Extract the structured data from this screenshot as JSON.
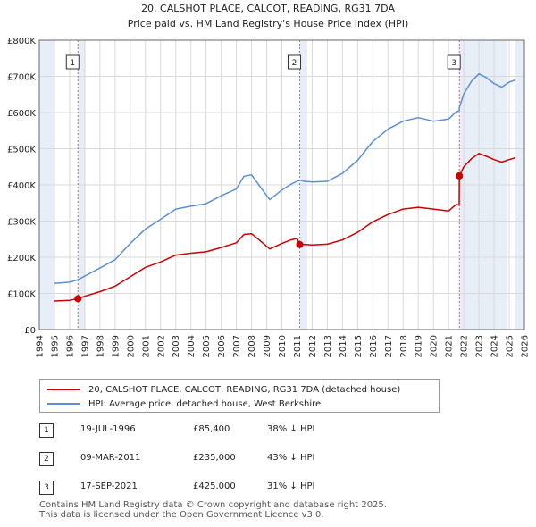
{
  "chart_data": {
    "type": "line",
    "title": "20, CALSHOT PLACE, CALCOT, READING, RG31 7DA",
    "subtitle": "Price paid vs. HM Land Registry's House Price Index (HPI)",
    "xlim": [
      1994,
      2026
    ],
    "ylim": [
      0,
      800000
    ],
    "y_ticks": [
      0,
      100000,
      200000,
      300000,
      400000,
      500000,
      600000,
      700000,
      800000
    ],
    "y_tick_labels": [
      "£0",
      "£100K",
      "£200K",
      "£300K",
      "£400K",
      "£500K",
      "£600K",
      "£700K",
      "£800K"
    ],
    "x_ticks": [
      1994,
      1995,
      1996,
      1997,
      1998,
      1999,
      2000,
      2001,
      2002,
      2003,
      2004,
      2005,
      2006,
      2007,
      2008,
      2009,
      2010,
      2011,
      2012,
      2013,
      2014,
      2015,
      2016,
      2017,
      2018,
      2019,
      2020,
      2021,
      2022,
      2023,
      2024,
      2025,
      2026
    ],
    "data_range": [
      1995.0,
      2025.4
    ],
    "shaded_regions": [
      [
        1994,
        1995.0
      ],
      [
        1996.55,
        1997.05
      ],
      [
        2011.18,
        2011.68
      ],
      [
        2021.71,
        2024.9
      ],
      [
        2025.4,
        2026
      ]
    ],
    "series": [
      {
        "name": "20, CALSHOT PLACE, CALCOT, READING, RG31 7DA (detached house)",
        "color": "#cc0000",
        "x": [
          1995.0,
          1996.0,
          1996.55,
          1997.0,
          1998.0,
          1999.0,
          2000.0,
          2001.0,
          2002.0,
          2003.0,
          2004.0,
          2005.0,
          2006.0,
          2007.0,
          2007.5,
          2008.0,
          2008.5,
          2009.2,
          2010.0,
          2010.6,
          2011.0,
          2011.18,
          2011.5,
          2012.0,
          2013.0,
          2014.0,
          2015.0,
          2016.0,
          2017.0,
          2018.0,
          2019.0,
          2020.0,
          2021.0,
          2021.5,
          2021.7,
          2021.71,
          2022.0,
          2022.5,
          2023.0,
          2023.5,
          2024.0,
          2024.5,
          2025.0,
          2025.4
        ],
        "values": [
          79000,
          81000,
          85400,
          92000,
          105000,
          120000,
          146000,
          172000,
          187000,
          206000,
          211000,
          215000,
          227000,
          240000,
          263000,
          265000,
          248000,
          223000,
          238000,
          248000,
          252000,
          235000,
          235000,
          234000,
          236000,
          248000,
          269000,
          298000,
          318000,
          333000,
          338000,
          333000,
          328000,
          346000,
          344000,
          425000,
          450000,
          472000,
          487000,
          479000,
          470000,
          463000,
          470000,
          475000
        ]
      },
      {
        "name": "HPI: Average price, detached house, West Berkshire",
        "color": "#5b8fd4",
        "x": [
          1995.0,
          1996.0,
          1996.55,
          1997.0,
          1998.0,
          1999.0,
          2000.0,
          2001.0,
          2002.0,
          2003.0,
          2004.0,
          2005.0,
          2006.0,
          2007.0,
          2007.5,
          2008.0,
          2008.5,
          2009.2,
          2010.0,
          2010.6,
          2011.0,
          2011.18,
          2011.5,
          2012.0,
          2013.0,
          2014.0,
          2015.0,
          2016.0,
          2017.0,
          2018.0,
          2019.0,
          2020.0,
          2021.0,
          2021.5,
          2021.7,
          2021.71,
          2022.0,
          2022.5,
          2023.0,
          2023.5,
          2024.0,
          2024.5,
          2025.0,
          2025.4
        ],
        "values": [
          128000,
          131000,
          138000,
          148000,
          170000,
          193000,
          238000,
          278000,
          305000,
          333000,
          341000,
          348000,
          370000,
          389000,
          424000,
          428000,
          399000,
          359000,
          386000,
          402000,
          410000,
          413000,
          410000,
          408000,
          410000,
          432000,
          468000,
          520000,
          554000,
          576000,
          586000,
          576000,
          582000,
          602000,
          605000,
          614000,
          651000,
          686000,
          707000,
          696000,
          680000,
          670000,
          684000,
          690000
        ]
      }
    ],
    "markers": [
      {
        "label": "1",
        "x": 1996.55,
        "value": 85400
      },
      {
        "label": "2",
        "x": 2011.18,
        "value": 235000
      },
      {
        "label": "3",
        "x": 2021.71,
        "value": 425000
      }
    ]
  },
  "legend": [
    {
      "label": "20, CALSHOT PLACE, CALCOT, READING, RG31 7DA (detached house)",
      "color": "#cc0000"
    },
    {
      "label": "HPI: Average price, detached house, West Berkshire",
      "color": "#5b8fd4"
    }
  ],
  "sales": [
    {
      "num": "1",
      "date": "19-JUL-1996",
      "price": "£85,400",
      "hpi": "38% ↓ HPI"
    },
    {
      "num": "2",
      "date": "09-MAR-2011",
      "price": "£235,000",
      "hpi": "43% ↓ HPI"
    },
    {
      "num": "3",
      "date": "17-SEP-2021",
      "price": "£425,000",
      "hpi": "31% ↓ HPI"
    }
  ],
  "footer": {
    "line1": "Contains HM Land Registry data © Crown copyright and database right 2025.",
    "line2": "This data is licensed under the Open Government Licence v3.0."
  }
}
